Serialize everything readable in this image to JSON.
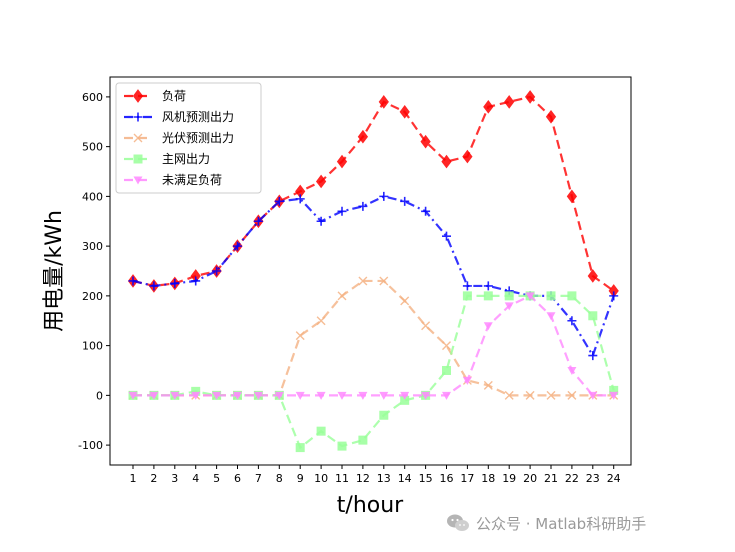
{
  "chart_data": {
    "type": "line",
    "xlabel": "t/hour",
    "ylabel": "用电量/kWh",
    "categories": [
      1,
      2,
      3,
      4,
      5,
      6,
      7,
      8,
      9,
      10,
      11,
      12,
      13,
      14,
      15,
      16,
      17,
      18,
      19,
      20,
      21,
      22,
      23,
      24
    ],
    "ylim": [
      -140,
      640
    ],
    "yticks": [
      -100,
      0,
      100,
      200,
      300,
      400,
      500,
      600
    ],
    "legend_position": "top-left",
    "series": [
      {
        "name": "负荷",
        "color": "#ff0000",
        "linestyle": "dashed",
        "marker": "diamond",
        "values": [
          230,
          220,
          225,
          240,
          250,
          300,
          350,
          390,
          410,
          430,
          470,
          520,
          590,
          570,
          510,
          470,
          480,
          580,
          590,
          600,
          560,
          400,
          240,
          210
        ]
      },
      {
        "name": "风机预测出力",
        "color": "#0000ff",
        "linestyle": "dashdot",
        "marker": "plus",
        "values": [
          230,
          220,
          225,
          230,
          250,
          300,
          350,
          390,
          395,
          350,
          370,
          380,
          400,
          390,
          370,
          320,
          220,
          220,
          210,
          200,
          200,
          150,
          80,
          200
        ]
      },
      {
        "name": "光伏预测出力",
        "color": "#f4b183",
        "linestyle": "dashed",
        "marker": "x",
        "values": [
          0,
          0,
          0,
          0,
          0,
          0,
          0,
          0,
          120,
          150,
          200,
          230,
          230,
          190,
          140,
          100,
          30,
          20,
          0,
          0,
          0,
          0,
          0,
          0
        ]
      },
      {
        "name": "主网出力",
        "color": "#99ff99",
        "linestyle": "dashed",
        "marker": "square",
        "values": [
          0,
          0,
          0,
          8,
          0,
          0,
          0,
          0,
          -105,
          -72,
          -102,
          -90,
          -40,
          -10,
          0,
          50,
          200,
          200,
          200,
          200,
          200,
          200,
          160,
          10
        ]
      },
      {
        "name": "未满足负荷",
        "color": "#ff88ff",
        "linestyle": "dashed",
        "marker": "triangle-down",
        "values": [
          0,
          0,
          0,
          0,
          0,
          0,
          0,
          0,
          0,
          0,
          0,
          0,
          0,
          0,
          0,
          0,
          30,
          140,
          180,
          200,
          160,
          50,
          0,
          0
        ]
      }
    ]
  },
  "watermark": {
    "text": "公众号 · Matlab科研助手",
    "icon": "wechat-icon"
  }
}
